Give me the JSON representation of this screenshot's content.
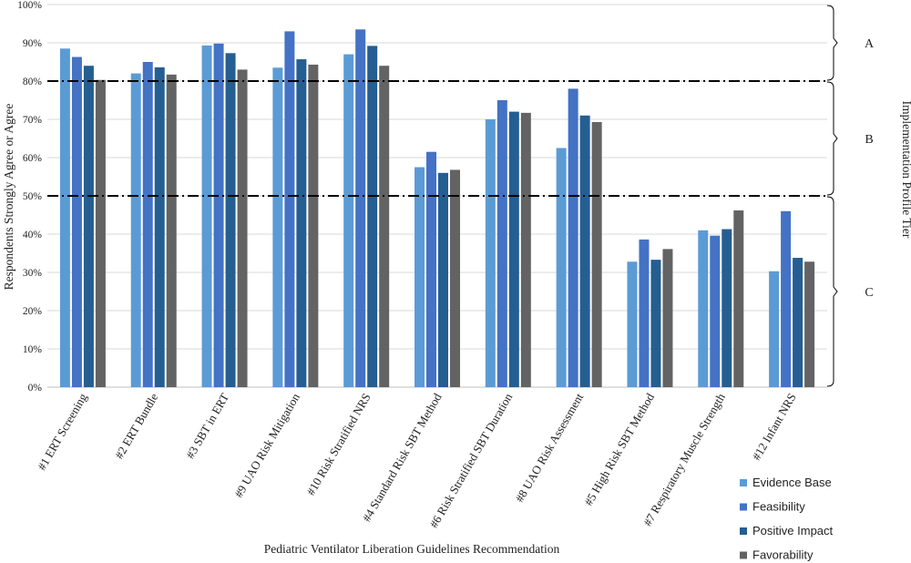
{
  "chart_data": {
    "type": "bar",
    "xlabel": "Pediatric Ventilator Liberation Guidelines Recommendation",
    "ylabel": "Respondents Strongly Agree or Agree",
    "y2label": "Implementation Profile Tier",
    "ylim": [
      0,
      100
    ],
    "yticks": [
      "0%",
      "10%",
      "20%",
      "30%",
      "40%",
      "50%",
      "60%",
      "70%",
      "80%",
      "90%",
      "100%"
    ],
    "grid": true,
    "legend_position": "bottom-right",
    "categories": [
      "#1 ERT Screening",
      "#2 ERT Bundle",
      "#3 SBT in ERT",
      "#9 UAO Risk Mitigation",
      "#10 Risk Stratified NRS",
      "#4 Standard Risk SBT Method",
      "#6 Risk Stratified SBT Duration",
      "#8 UAO Risk Assessment",
      "#5 High Risk SBT Method",
      "#7 Respiratory Muscle Strength",
      "#12 Infant NRS"
    ],
    "series": [
      {
        "name": "Evidence Base",
        "color": "#5b9bd5",
        "values": [
          88.5,
          82,
          89.3,
          83.5,
          87,
          57.5,
          70,
          62.5,
          32.8,
          41,
          30.3
        ]
      },
      {
        "name": "Feasibility",
        "color": "#4472c4",
        "values": [
          86.3,
          85,
          89.8,
          93,
          93.5,
          61.5,
          75,
          78,
          38.6,
          39.6,
          46
        ]
      },
      {
        "name": "Positive Impact",
        "color": "#255e91",
        "values": [
          84,
          83.6,
          87.3,
          85.7,
          89.2,
          56,
          72,
          71,
          33.3,
          41.3,
          33.8
        ]
      },
      {
        "name": "Favorability",
        "color": "#636363",
        "values": [
          80.3,
          81.7,
          83,
          84.3,
          84,
          56.8,
          71.7,
          69.3,
          36.1,
          46.2,
          32.8
        ]
      }
    ],
    "thresholds": [
      80,
      50
    ],
    "tiers": [
      {
        "label": "A",
        "from": 80,
        "to": 100
      },
      {
        "label": "B",
        "from": 50,
        "to": 80
      },
      {
        "label": "C",
        "from": 0,
        "to": 50
      }
    ]
  }
}
